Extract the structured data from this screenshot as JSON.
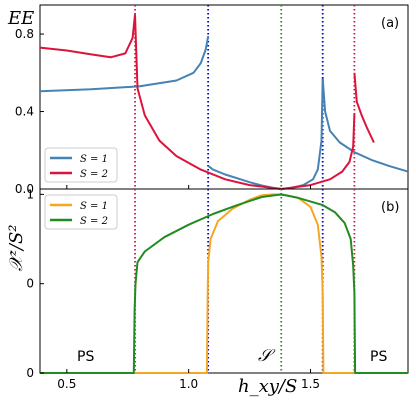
{
  "figure": {
    "top_panel": {
      "ylabel": "EE",
      "tag": "(a)",
      "yticks": [
        "0.0",
        "0.4",
        "0.8"
      ]
    },
    "bottom_panel": {
      "ylabel": "𝒳ᶻ/S²",
      "tag": "(b)",
      "yticks": [
        "0",
        "0",
        "1"
      ],
      "regions": {
        "left": "PS",
        "middle": "𝒮",
        "right": "PS"
      }
    },
    "xlabel": "h_xy/S",
    "xticks": [
      "0.5",
      "1.0",
      "1.5"
    ]
  },
  "colors": {
    "S1_top": "#4682b4",
    "S2_top": "#dc143c",
    "S1_bottom": "#f5a623",
    "S2_bottom": "#228b22",
    "vline_red": "#dc143c",
    "vline_blue": "#0000cd",
    "vline_green": "#228b22"
  },
  "chart_data": [
    {
      "type": "line",
      "panel": "top",
      "ylabel": "EE",
      "xlim": [
        0.39,
        1.9
      ],
      "ylim": [
        0.0,
        0.95
      ],
      "yticks": [
        0.0,
        0.4,
        0.8
      ],
      "legend": "lower-left",
      "vlines": [
        {
          "x": 0.78,
          "color": "red"
        },
        {
          "x": 1.08,
          "color": "blue"
        },
        {
          "x": 1.38,
          "color": "green"
        },
        {
          "x": 1.55,
          "color": "blue"
        },
        {
          "x": 1.68,
          "color": "red"
        }
      ],
      "series": [
        {
          "name": "S = 1",
          "segments": [
            {
              "x": [
                0.39,
                0.6,
                0.8,
                0.95,
                1.02,
                1.05,
                1.07,
                1.08
              ],
              "y": [
                0.505,
                0.515,
                0.53,
                0.56,
                0.6,
                0.65,
                0.72,
                0.79
              ]
            },
            {
              "x": [
                1.08,
                1.1,
                1.15,
                1.2,
                1.25,
                1.3,
                1.35,
                1.38
              ],
              "y": [
                0.12,
                0.1,
                0.075,
                0.055,
                0.035,
                0.018,
                0.005,
                0.0
              ]
            },
            {
              "x": [
                1.38,
                1.42,
                1.47,
                1.51,
                1.53,
                1.545,
                1.55
              ],
              "y": [
                0.0,
                0.005,
                0.02,
                0.05,
                0.1,
                0.25,
                0.57
              ]
            },
            {
              "x": [
                1.55,
                1.56,
                1.58,
                1.62,
                1.68,
                1.75,
                1.82,
                1.9
              ],
              "y": [
                0.57,
                0.4,
                0.3,
                0.24,
                0.19,
                0.15,
                0.12,
                0.09
              ]
            }
          ]
        },
        {
          "name": "S = 2",
          "segments": [
            {
              "x": [
                0.39,
                0.5,
                0.6,
                0.68,
                0.74,
                0.77,
                0.78
              ],
              "y": [
                0.73,
                0.715,
                0.695,
                0.68,
                0.7,
                0.78,
                0.9
              ]
            },
            {
              "x": [
                0.78,
                0.79,
                0.82,
                0.88,
                0.95,
                1.05,
                1.15,
                1.25,
                1.38
              ],
              "y": [
                0.9,
                0.52,
                0.38,
                0.25,
                0.17,
                0.1,
                0.05,
                0.02,
                0.0
              ]
            },
            {
              "x": [
                1.38,
                1.5,
                1.58,
                1.63,
                1.66,
                1.675,
                1.68
              ],
              "y": [
                0.0,
                0.02,
                0.05,
                0.09,
                0.14,
                0.22,
                0.39
              ]
            },
            {
              "x": [
                1.68,
                1.69,
                1.71,
                1.73,
                1.76
              ],
              "y": [
                0.6,
                0.45,
                0.38,
                0.32,
                0.24
              ]
            }
          ]
        }
      ]
    },
    {
      "type": "line",
      "panel": "bottom",
      "xlabel": "h_xy/S",
      "ylabel": "𝒳ᶻ/S²",
      "xlim": [
        0.39,
        1.9
      ],
      "ylim": [
        0.0,
        1.03
      ],
      "yticks": [
        0.0,
        0.5,
        1.0
      ],
      "xticks": [
        0.5,
        1.0,
        1.5
      ],
      "legend": "top-left",
      "series": [
        {
          "name": "S = 1",
          "x": [
            0.39,
            1.075,
            1.078,
            1.08,
            1.09,
            1.12,
            1.18,
            1.25,
            1.3,
            1.35,
            1.4,
            1.45,
            1.5,
            1.53,
            1.545,
            1.55,
            1.553,
            1.9
          ],
          "y": [
            0.0,
            0.0,
            0.45,
            0.62,
            0.75,
            0.85,
            0.92,
            0.97,
            0.995,
            1.0,
            0.995,
            0.98,
            0.93,
            0.83,
            0.65,
            0.45,
            0.0,
            0.0
          ]
        },
        {
          "name": "S = 2",
          "x": [
            0.39,
            0.775,
            0.778,
            0.782,
            0.79,
            0.82,
            0.9,
            1.0,
            1.1,
            1.2,
            1.3,
            1.38,
            1.45,
            1.55,
            1.6,
            1.64,
            1.665,
            1.675,
            1.68,
            1.683,
            1.9
          ],
          "y": [
            0.0,
            0.0,
            0.35,
            0.5,
            0.62,
            0.68,
            0.76,
            0.83,
            0.89,
            0.94,
            0.985,
            1.0,
            0.98,
            0.94,
            0.9,
            0.84,
            0.75,
            0.6,
            0.45,
            0.0,
            0.0
          ]
        }
      ]
    }
  ]
}
